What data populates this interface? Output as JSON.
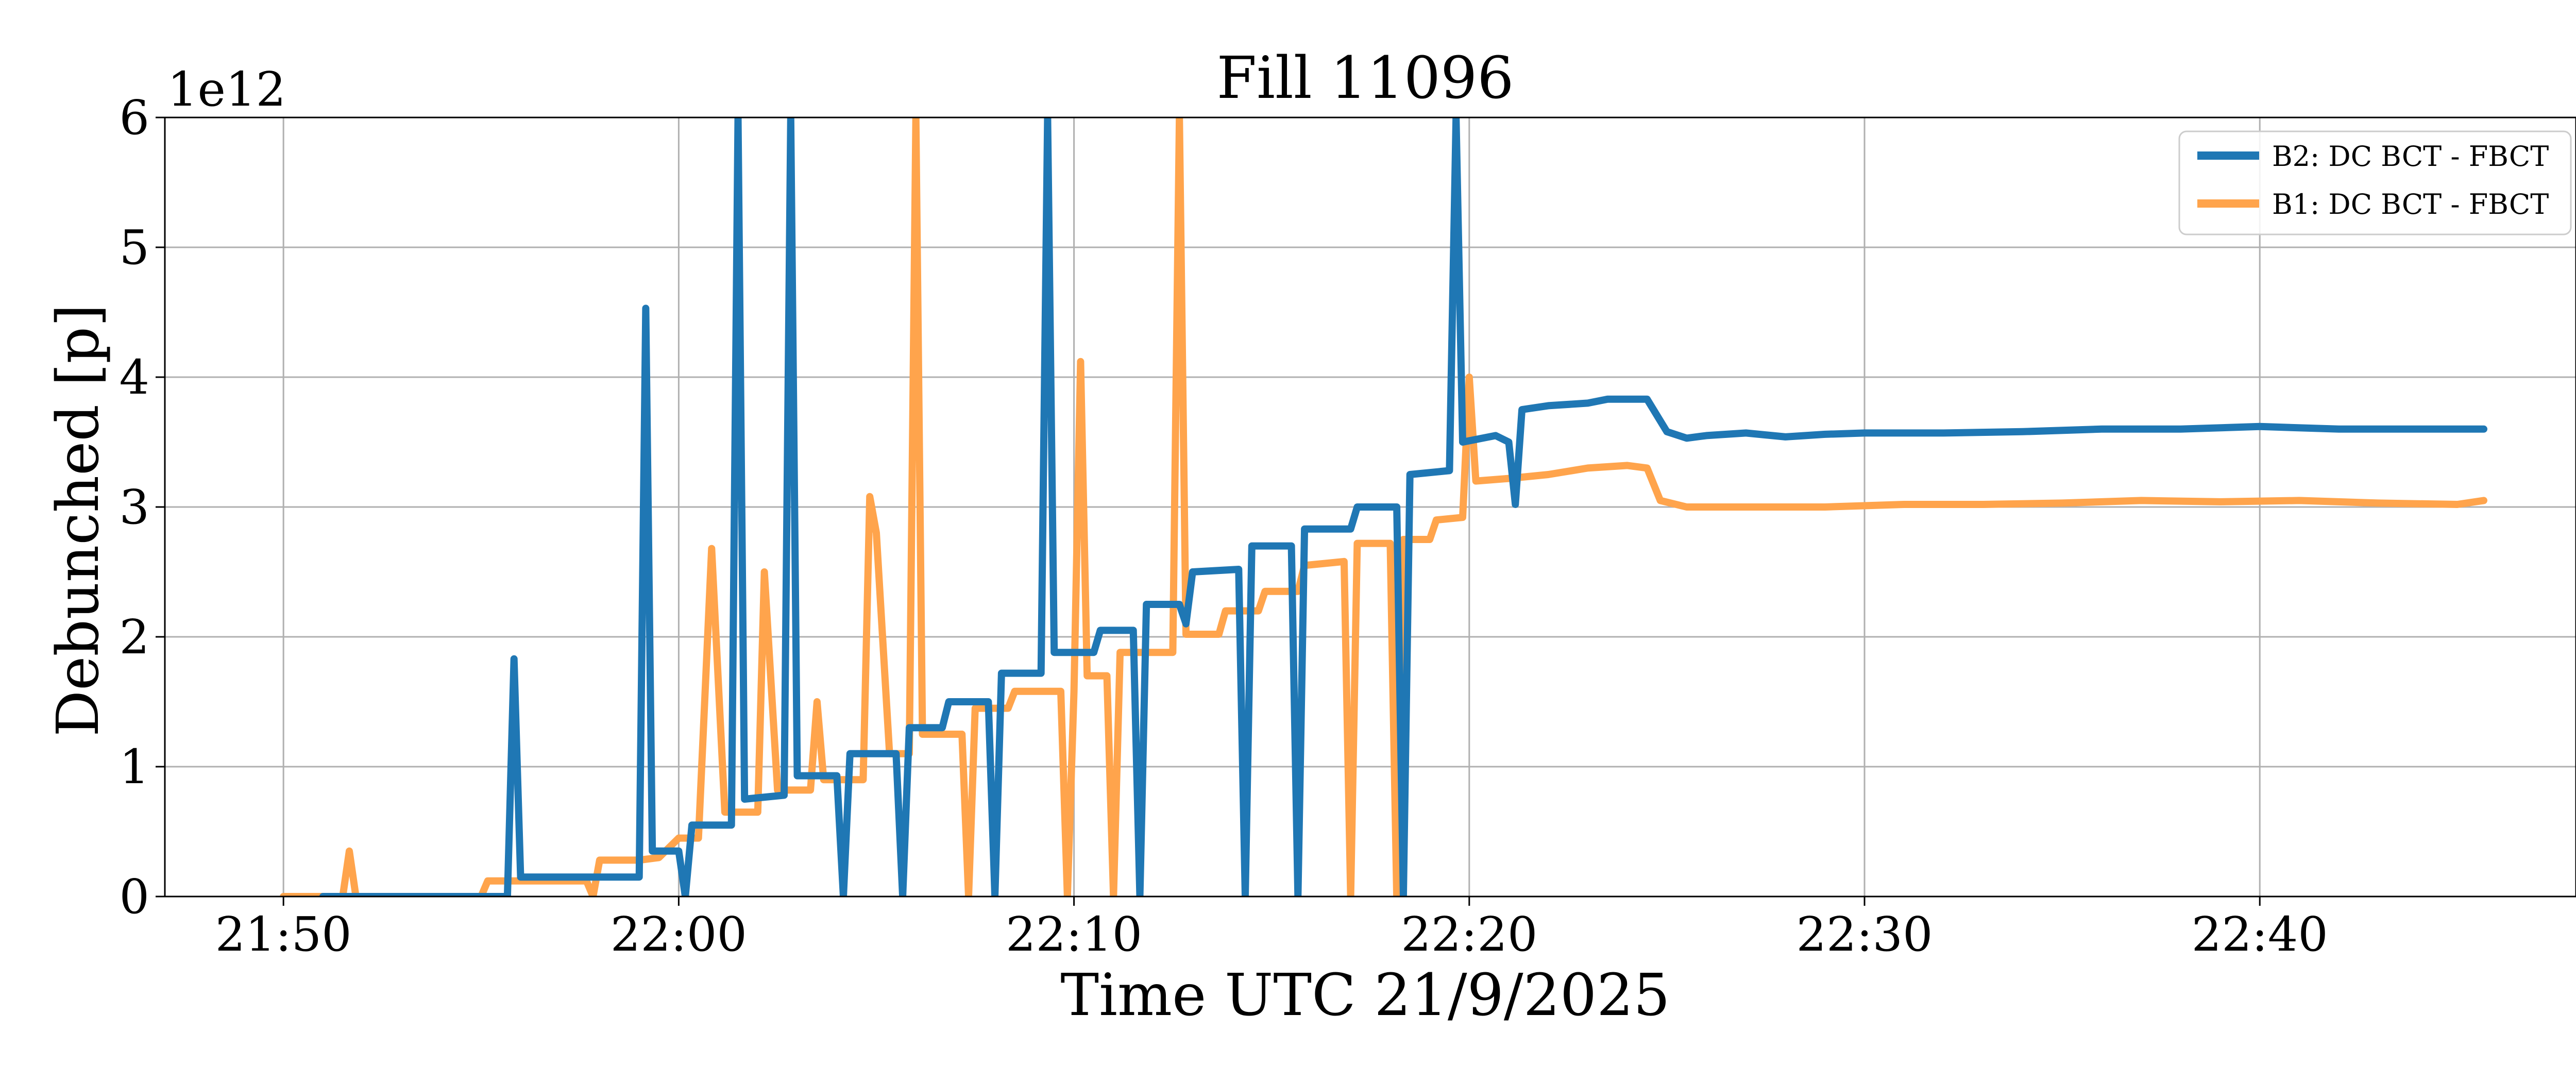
{
  "chart_data": {
    "type": "line",
    "title": "Fill 11096",
    "xlabel": "Time UTC 21/9/2025",
    "ylabel": "Debunched [p]",
    "y_offset_label": "1e12",
    "xlim": [
      "21:47",
      "22:48"
    ],
    "ylim": [
      0,
      6
    ],
    "xticks": [
      "21:50",
      "22:00",
      "22:10",
      "22:20",
      "22:30",
      "22:40"
    ],
    "yticks": [
      "0",
      "1",
      "2",
      "3",
      "4",
      "5",
      "6"
    ],
    "grid": true,
    "legend_position": "upper-right",
    "series": [
      {
        "name": "B2: DC BCT - FBCT",
        "color": "#1f77b4",
        "points": [
          [
            "21:51:00",
            0.0
          ],
          [
            "21:55:40",
            0.0
          ],
          [
            "21:55:50",
            1.83
          ],
          [
            "21:56:00",
            0.15
          ],
          [
            "21:58:00",
            0.15
          ],
          [
            "21:59:00",
            0.15
          ],
          [
            "21:59:10",
            4.53
          ],
          [
            "21:59:20",
            0.35
          ],
          [
            "22:00:00",
            0.35
          ],
          [
            "22:00:10",
            0.0
          ],
          [
            "22:00:20",
            0.55
          ],
          [
            "22:01:20",
            0.55
          ],
          [
            "22:01:30",
            6.0
          ],
          [
            "22:01:40",
            0.75
          ],
          [
            "22:02:40",
            0.78
          ],
          [
            "22:02:50",
            6.0
          ],
          [
            "22:03:00",
            0.93
          ],
          [
            "22:04:00",
            0.93
          ],
          [
            "22:04:10",
            0.0
          ],
          [
            "22:04:20",
            1.1
          ],
          [
            "22:05:30",
            1.1
          ],
          [
            "22:05:40",
            0.0
          ],
          [
            "22:05:50",
            1.3
          ],
          [
            "22:06:40",
            1.3
          ],
          [
            "22:06:50",
            1.5
          ],
          [
            "22:07:50",
            1.5
          ],
          [
            "22:08:00",
            0.0
          ],
          [
            "22:08:10",
            1.72
          ],
          [
            "22:09:10",
            1.72
          ],
          [
            "22:09:20",
            6.0
          ],
          [
            "22:09:30",
            1.88
          ],
          [
            "22:10:30",
            1.88
          ],
          [
            "22:10:40",
            2.05
          ],
          [
            "22:11:30",
            2.05
          ],
          [
            "22:11:40",
            0.0
          ],
          [
            "22:11:50",
            2.25
          ],
          [
            "22:12:40",
            2.25
          ],
          [
            "22:12:50",
            2.1
          ],
          [
            "22:13:00",
            2.5
          ],
          [
            "22:14:10",
            2.52
          ],
          [
            "22:14:20",
            0.0
          ],
          [
            "22:14:30",
            2.7
          ],
          [
            "22:15:30",
            2.7
          ],
          [
            "22:15:40",
            0.0
          ],
          [
            "22:15:50",
            2.83
          ],
          [
            "22:17:00",
            2.83
          ],
          [
            "22:17:10",
            3.0
          ],
          [
            "22:18:10",
            3.0
          ],
          [
            "22:18:20",
            0.0
          ],
          [
            "22:18:30",
            3.25
          ],
          [
            "22:19:30",
            3.28
          ],
          [
            "22:19:40",
            6.0
          ],
          [
            "22:19:50",
            3.5
          ],
          [
            "22:20:40",
            3.55
          ],
          [
            "22:21:00",
            3.5
          ],
          [
            "22:21:10",
            3.02
          ],
          [
            "22:21:20",
            3.75
          ],
          [
            "22:22:00",
            3.78
          ],
          [
            "22:23:00",
            3.8
          ],
          [
            "22:23:30",
            3.83
          ],
          [
            "22:24:30",
            3.83
          ],
          [
            "22:25:00",
            3.58
          ],
          [
            "22:25:30",
            3.53
          ],
          [
            "22:26:00",
            3.55
          ],
          [
            "22:27:00",
            3.57
          ],
          [
            "22:28:00",
            3.54
          ],
          [
            "22:29:00",
            3.56
          ],
          [
            "22:30:00",
            3.57
          ],
          [
            "22:32:00",
            3.57
          ],
          [
            "22:34:00",
            3.58
          ],
          [
            "22:36:00",
            3.6
          ],
          [
            "22:38:00",
            3.6
          ],
          [
            "22:40:00",
            3.62
          ],
          [
            "22:42:00",
            3.6
          ],
          [
            "22:44:00",
            3.6
          ],
          [
            "22:45:40",
            3.6
          ]
        ]
      },
      {
        "name": "B1: DC BCT - FBCT",
        "color": "#ffa44c",
        "points": [
          [
            "21:50:00",
            0.0
          ],
          [
            "21:51:30",
            0.0
          ],
          [
            "21:51:40",
            0.35
          ],
          [
            "21:51:50",
            0.0
          ],
          [
            "21:55:00",
            0.0
          ],
          [
            "21:55:10",
            0.12
          ],
          [
            "21:57:40",
            0.12
          ],
          [
            "21:57:50",
            0.0
          ],
          [
            "21:58:00",
            0.28
          ],
          [
            "21:59:00",
            0.28
          ],
          [
            "21:59:30",
            0.3
          ],
          [
            "22:00:00",
            0.45
          ],
          [
            "22:00:30",
            0.45
          ],
          [
            "22:00:50",
            2.68
          ],
          [
            "22:01:10",
            0.65
          ],
          [
            "22:02:00",
            0.65
          ],
          [
            "22:02:10",
            2.5
          ],
          [
            "22:02:30",
            0.82
          ],
          [
            "22:03:20",
            0.82
          ],
          [
            "22:03:30",
            1.5
          ],
          [
            "22:03:40",
            0.9
          ],
          [
            "22:04:40",
            0.9
          ],
          [
            "22:04:50",
            3.08
          ],
          [
            "22:05:00",
            2.8
          ],
          [
            "22:05:20",
            1.1
          ],
          [
            "22:05:50",
            1.1
          ],
          [
            "22:06:00",
            6.0
          ],
          [
            "22:06:10",
            1.25
          ],
          [
            "22:07:10",
            1.25
          ],
          [
            "22:07:20",
            0.0
          ],
          [
            "22:07:30",
            1.45
          ],
          [
            "22:08:20",
            1.45
          ],
          [
            "22:08:30",
            1.58
          ],
          [
            "22:09:40",
            1.58
          ],
          [
            "22:09:50",
            0.0
          ],
          [
            "22:10:00",
            1.58
          ],
          [
            "22:10:10",
            4.12
          ],
          [
            "22:10:20",
            1.7
          ],
          [
            "22:10:50",
            1.7
          ],
          [
            "22:11:00",
            0.0
          ],
          [
            "22:11:10",
            1.88
          ],
          [
            "22:12:30",
            1.88
          ],
          [
            "22:12:40",
            6.0
          ],
          [
            "22:12:50",
            2.02
          ],
          [
            "22:13:40",
            2.02
          ],
          [
            "22:13:50",
            2.2
          ],
          [
            "22:14:40",
            2.2
          ],
          [
            "22:14:50",
            2.35
          ],
          [
            "22:15:40",
            2.35
          ],
          [
            "22:15:50",
            2.55
          ],
          [
            "22:16:50",
            2.58
          ],
          [
            "22:17:00",
            0.0
          ],
          [
            "22:17:10",
            2.72
          ],
          [
            "22:18:00",
            2.72
          ],
          [
            "22:18:10",
            0.0
          ],
          [
            "22:18:20",
            2.75
          ],
          [
            "22:19:00",
            2.75
          ],
          [
            "22:19:10",
            2.9
          ],
          [
            "22:19:50",
            2.92
          ],
          [
            "22:20:00",
            4.0
          ],
          [
            "22:20:10",
            3.2
          ],
          [
            "22:21:00",
            3.22
          ],
          [
            "22:22:00",
            3.25
          ],
          [
            "22:23:00",
            3.3
          ],
          [
            "22:24:00",
            3.32
          ],
          [
            "22:24:30",
            3.3
          ],
          [
            "22:24:50",
            3.05
          ],
          [
            "22:25:30",
            3.0
          ],
          [
            "22:27:00",
            3.0
          ],
          [
            "22:29:00",
            3.0
          ],
          [
            "22:31:00",
            3.02
          ],
          [
            "22:33:00",
            3.02
          ],
          [
            "22:35:00",
            3.03
          ],
          [
            "22:37:00",
            3.05
          ],
          [
            "22:39:00",
            3.04
          ],
          [
            "22:41:00",
            3.05
          ],
          [
            "22:43:00",
            3.03
          ],
          [
            "22:45:00",
            3.02
          ],
          [
            "22:45:40",
            3.05
          ]
        ]
      }
    ]
  }
}
